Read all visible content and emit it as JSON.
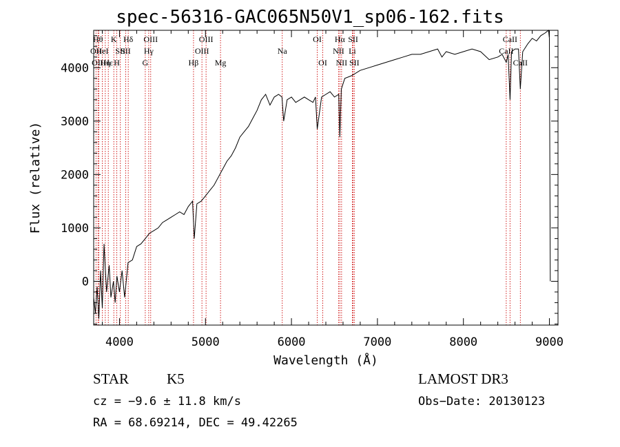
{
  "chart_data": {
    "type": "line",
    "title": "spec-56316-GAC065N50V1_sp06-162.fits",
    "xlabel": "Wavelength (Å)",
    "ylabel": "Flux (relative)",
    "xlim": [
      3700,
      9100
    ],
    "ylim": [
      -820,
      4700
    ],
    "xticks": [
      4000,
      5000,
      6000,
      7000,
      8000,
      9000
    ],
    "yticks": [
      0,
      1000,
      2000,
      3000,
      4000
    ],
    "series": [
      {
        "name": "spectrum",
        "x": [
          3700,
          3720,
          3740,
          3760,
          3780,
          3800,
          3820,
          3850,
          3880,
          3900,
          3930,
          3950,
          3970,
          4000,
          4030,
          4060,
          4100,
          4150,
          4200,
          4250,
          4300,
          4350,
          4400,
          4450,
          4500,
          4550,
          4600,
          4650,
          4700,
          4750,
          4800,
          4850,
          4870,
          4900,
          4950,
          5000,
          5050,
          5100,
          5150,
          5200,
          5250,
          5300,
          5350,
          5400,
          5450,
          5500,
          5550,
          5600,
          5650,
          5700,
          5750,
          5800,
          5850,
          5890,
          5910,
          5950,
          6000,
          6050,
          6100,
          6150,
          6200,
          6250,
          6280,
          6300,
          6350,
          6400,
          6450,
          6500,
          6550,
          6563,
          6580,
          6620,
          6700,
          6800,
          6900,
          7000,
          7100,
          7200,
          7300,
          7400,
          7500,
          7600,
          7700,
          7750,
          7800,
          7900,
          8000,
          8100,
          8200,
          8300,
          8400,
          8450,
          8498,
          8520,
          8542,
          8560,
          8600,
          8640,
          8662,
          8690,
          8750,
          8800,
          8850,
          8900,
          8950,
          8990,
          9000,
          9010
        ],
        "y": [
          -300,
          -600,
          -100,
          -700,
          200,
          -500,
          700,
          -200,
          300,
          -300,
          0,
          -400,
          100,
          -200,
          200,
          -300,
          350,
          400,
          650,
          700,
          800,
          900,
          950,
          1000,
          1100,
          1150,
          1200,
          1250,
          1300,
          1250,
          1400,
          1500,
          800,
          1450,
          1500,
          1600,
          1700,
          1800,
          1950,
          2100,
          2250,
          2350,
          2500,
          2700,
          2800,
          2900,
          3050,
          3200,
          3400,
          3500,
          3300,
          3450,
          3500,
          3450,
          3000,
          3400,
          3450,
          3350,
          3400,
          3450,
          3400,
          3350,
          3450,
          2850,
          3450,
          3500,
          3550,
          3450,
          3500,
          2700,
          3600,
          3800,
          3850,
          3950,
          4000,
          4050,
          4100,
          4150,
          4200,
          4250,
          4250,
          4300,
          4350,
          4200,
          4300,
          4250,
          4300,
          4350,
          4300,
          4150,
          4200,
          4250,
          4100,
          4250,
          3400,
          4300,
          4350,
          4350,
          3600,
          4300,
          4450,
          4550,
          4500,
          4600,
          4650,
          4700,
          4550,
          0
        ]
      }
    ],
    "spectral_lines": [
      {
        "x": 3727,
        "label": "OII",
        "row": 2
      },
      {
        "x": 3750,
        "label": "Hθ",
        "row": 1
      },
      {
        "x": 3760,
        "label": "OIII",
        "row": 3
      },
      {
        "x": 3800,
        "label": "HeI",
        "row": 2
      },
      {
        "x": 3835,
        "label": "Hη",
        "row": 3
      },
      {
        "x": 3870,
        "label": "Hε",
        "row": 3
      },
      {
        "x": 3934,
        "label": "K",
        "row": 1
      },
      {
        "x": 3969,
        "label": "H",
        "row": 3
      },
      {
        "x": 4010,
        "label": "SII",
        "row": 2
      },
      {
        "x": 4072,
        "label": "SII",
        "row": 2
      },
      {
        "x": 4102,
        "label": "Hδ",
        "row": 1
      },
      {
        "x": 4300,
        "label": "G",
        "row": 3
      },
      {
        "x": 4340,
        "label": "Hγ",
        "row": 2
      },
      {
        "x": 4363,
        "label": "OIII",
        "row": 1
      },
      {
        "x": 4861,
        "label": "Hβ",
        "row": 3
      },
      {
        "x": 4959,
        "label": "OIII",
        "row": 2
      },
      {
        "x": 5007,
        "label": "OIII",
        "row": 1
      },
      {
        "x": 5175,
        "label": "Mg",
        "row": 3
      },
      {
        "x": 5893,
        "label": "Na",
        "row": 2
      },
      {
        "x": 6300,
        "label": "OI",
        "row": 1
      },
      {
        "x": 6364,
        "label": "OI",
        "row": 3
      },
      {
        "x": 6548,
        "label": "NII",
        "row": 2
      },
      {
        "x": 6563,
        "label": "Hα",
        "row": 1
      },
      {
        "x": 6583,
        "label": "NII",
        "row": 3
      },
      {
        "x": 6708,
        "label": "Li",
        "row": 2
      },
      {
        "x": 6717,
        "label": "SII",
        "row": 1
      },
      {
        "x": 6731,
        "label": "SII",
        "row": 3
      },
      {
        "x": 8498,
        "label": "CaII",
        "row": 2
      },
      {
        "x": 8542,
        "label": "CaII",
        "row": 1
      },
      {
        "x": 8662,
        "label": "CaII",
        "row": 3
      }
    ]
  },
  "info": {
    "class": "STAR",
    "subclass": "K5",
    "survey": "LAMOST DR3",
    "cz": "cz = −9.6 ± 11.8 km/s",
    "obs_date": "Obs−Date: 20130123",
    "coords": "RA =  68.69214, DEC =  49.42265"
  },
  "colors": {
    "spectrum": "#000000",
    "line_markers": "#cc0000",
    "axes": "#000000"
  }
}
